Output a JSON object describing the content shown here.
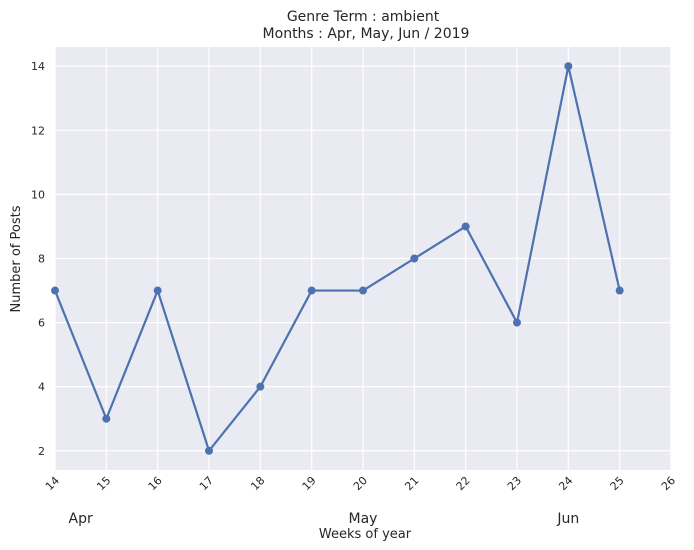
{
  "chart_data": {
    "type": "line",
    "title": "Genre Term : ambient",
    "subtitle": "Months : Apr, May, Jun / 2019",
    "xlabel": "Weeks of year",
    "ylabel": "Number of Posts",
    "x": [
      14,
      15,
      16,
      17,
      18,
      19,
      20,
      21,
      22,
      23,
      24,
      25
    ],
    "series": [
      {
        "values": [
          7,
          3,
          7,
          2,
          4,
          7,
          7,
          8,
          9,
          6,
          14,
          7
        ],
        "color": "#4c72b0"
      }
    ],
    "xlim": [
      14,
      26
    ],
    "ylim": [
      1.4,
      14.6
    ],
    "x_ticks": [
      "14",
      "15",
      "16",
      "17",
      "18",
      "19",
      "20",
      "21",
      "22",
      "23",
      "24",
      "25",
      "26"
    ],
    "y_ticks": [
      "2",
      "4",
      "6",
      "8",
      "10",
      "12",
      "14"
    ],
    "month_labels": [
      {
        "label": "Apr",
        "week": 14.5
      },
      {
        "label": "May",
        "week": 20
      },
      {
        "label": "Jun",
        "week": 24
      }
    ],
    "grid": true,
    "plot_background": "#eaeaf2",
    "grid_color": "#ffffff"
  }
}
